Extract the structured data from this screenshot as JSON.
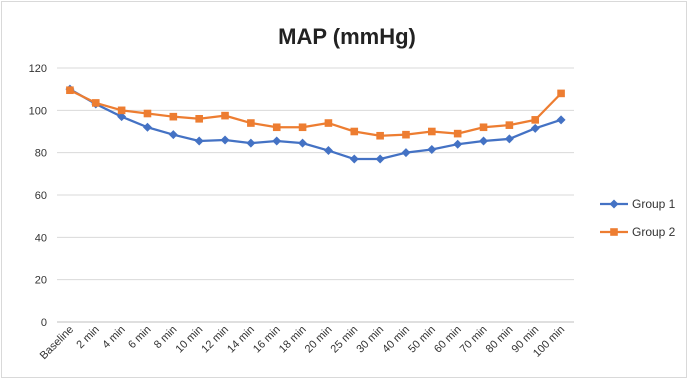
{
  "chart_data": {
    "type": "line",
    "title": "MAP (mmHg)",
    "xlabel": "",
    "ylabel": "",
    "categories": [
      "Baseline",
      "2 min",
      "4 min",
      "6 min",
      "8 min",
      "10 min",
      "12 min",
      "14 min",
      "16 min",
      "18 min",
      "20 min",
      "25 min",
      "30 min",
      "40 min",
      "50 min",
      "60 min",
      "70 min",
      "80 min",
      "90 min",
      "100 min"
    ],
    "ylim": [
      0,
      120
    ],
    "yticks": [
      "0",
      "20",
      "40",
      "60",
      "80",
      "100",
      "120"
    ],
    "grid": true,
    "legend_position": "right",
    "series": [
      {
        "name": "Group 1",
        "color": "#4472C4",
        "marker": "diamond",
        "values": [
          110,
          103,
          97,
          92,
          88.5,
          85.5,
          86,
          84.5,
          85.5,
          84.5,
          81,
          77,
          77,
          80,
          81.5,
          84,
          85.5,
          86.5,
          91.5,
          95.5
        ]
      },
      {
        "name": "Group 2",
        "color": "#ED7D31",
        "marker": "square",
        "values": [
          109.5,
          103.5,
          100,
          98.5,
          97,
          96,
          97.5,
          94,
          92,
          92,
          94,
          90,
          88,
          88.5,
          90,
          89,
          92,
          93,
          95.5,
          108
        ]
      }
    ]
  }
}
